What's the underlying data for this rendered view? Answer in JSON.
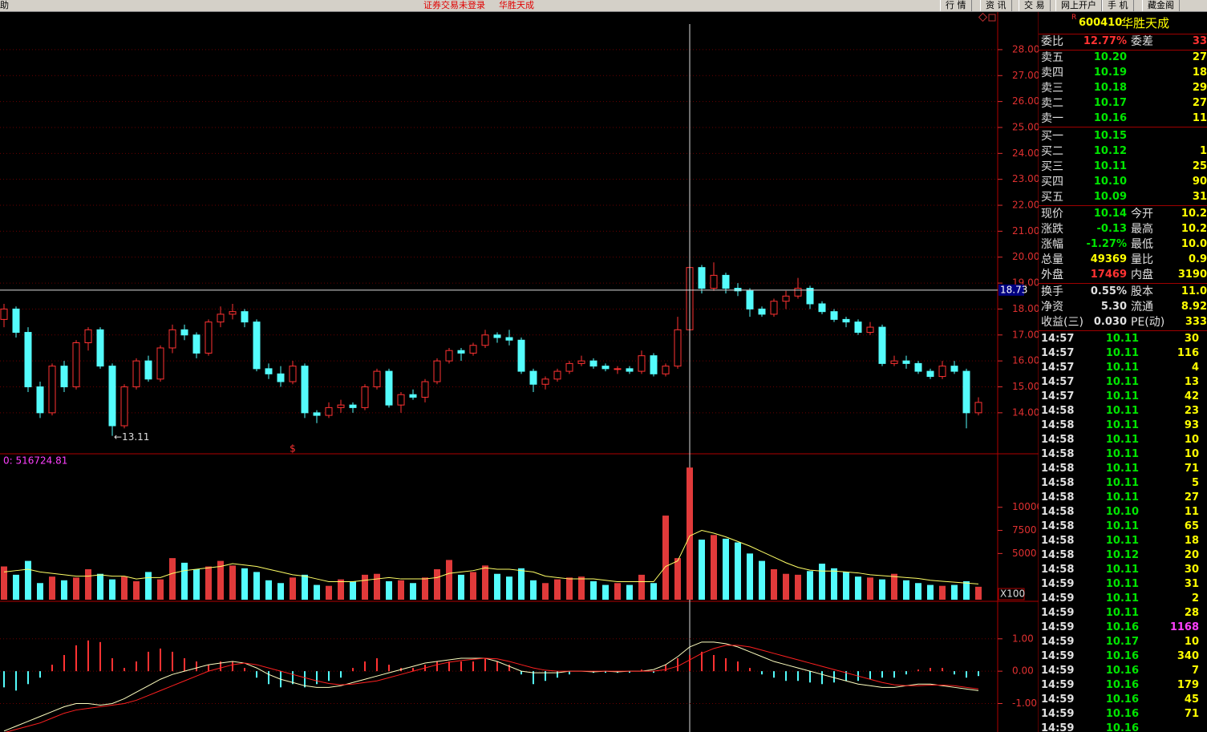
{
  "menu": {
    "left": "助",
    "status": "证券交易未登录",
    "stock": "华胜天成",
    "tabs": [
      "行 情",
      "资 讯",
      "交 易",
      "网上开户",
      "手 机",
      "藏金阁"
    ]
  },
  "chart_data": [
    {
      "type": "candlestick",
      "up_color": "#ff3232",
      "down_color": "#54fcfc",
      "grid": true,
      "open": [
        17.6,
        18.0,
        17.1,
        15.0,
        14.0,
        15.8,
        15.0,
        16.7,
        17.2,
        15.8,
        13.5,
        15.0,
        16.0,
        15.3,
        16.5,
        17.2,
        17.0,
        16.3,
        17.5,
        17.8,
        17.9,
        17.5,
        15.7,
        15.5,
        15.2,
        15.8,
        14.0,
        13.9,
        14.2,
        14.3,
        14.2,
        15.0,
        15.6,
        14.3,
        14.7,
        14.6,
        15.2,
        16.0,
        16.4,
        16.3,
        16.6,
        17.0,
        16.9,
        16.8,
        15.6,
        15.1,
        15.3,
        15.6,
        15.9,
        16.0,
        15.8,
        15.7,
        15.7,
        15.6,
        16.2,
        15.5,
        15.8,
        17.2,
        19.6,
        18.8,
        19.3,
        18.8,
        18.7,
        18.0,
        17.8,
        18.3,
        18.5,
        18.8,
        18.2,
        17.9,
        17.6,
        17.5,
        17.1,
        17.3,
        15.9,
        16.0,
        15.9,
        15.6,
        15.4,
        15.8,
        15.6,
        14.0
      ],
      "high": [
        18.2,
        18.1,
        17.3,
        15.2,
        15.9,
        16.0,
        16.8,
        17.3,
        17.3,
        15.9,
        15.1,
        16.1,
        16.2,
        16.6,
        17.4,
        17.4,
        17.1,
        17.6,
        18.1,
        18.2,
        18.0,
        17.6,
        15.9,
        15.8,
        16.0,
        15.9,
        14.1,
        14.4,
        14.5,
        14.4,
        15.1,
        15.7,
        15.7,
        14.8,
        14.9,
        15.3,
        16.1,
        16.5,
        16.5,
        16.7,
        17.2,
        17.1,
        17.2,
        16.9,
        15.7,
        15.4,
        15.7,
        16.0,
        16.2,
        16.1,
        15.9,
        15.8,
        15.8,
        16.4,
        16.3,
        15.9,
        17.7,
        20.0,
        19.7,
        19.8,
        19.4,
        19.0,
        18.8,
        18.1,
        18.4,
        18.7,
        19.2,
        18.9,
        18.3,
        18.0,
        17.7,
        17.6,
        17.5,
        17.4,
        16.2,
        16.2,
        16.0,
        15.7,
        16.0,
        16.0,
        15.7,
        14.6
      ],
      "low": [
        17.3,
        16.9,
        14.8,
        13.8,
        13.9,
        14.8,
        14.9,
        16.4,
        15.7,
        13.11,
        13.4,
        14.9,
        15.2,
        15.2,
        16.3,
        16.8,
        16.1,
        16.2,
        17.3,
        17.6,
        17.3,
        15.6,
        15.3,
        15.0,
        15.1,
        13.8,
        13.6,
        13.8,
        14.0,
        14.0,
        14.1,
        14.9,
        14.2,
        14.0,
        14.5,
        14.4,
        15.1,
        15.9,
        16.0,
        16.2,
        16.5,
        16.7,
        16.6,
        15.5,
        14.8,
        14.9,
        15.2,
        15.5,
        15.8,
        15.7,
        15.6,
        15.5,
        15.5,
        15.5,
        15.4,
        15.4,
        15.7,
        16.8,
        18.6,
        18.7,
        18.6,
        18.5,
        17.7,
        17.7,
        17.7,
        18.0,
        18.4,
        18.0,
        17.8,
        17.5,
        17.3,
        17.0,
        17.0,
        15.8,
        15.8,
        15.7,
        15.5,
        15.3,
        15.3,
        15.5,
        13.4,
        13.9
      ],
      "close": [
        18.0,
        17.1,
        15.0,
        14.0,
        15.8,
        15.0,
        16.7,
        17.2,
        15.8,
        13.5,
        15.0,
        16.0,
        15.3,
        16.5,
        17.2,
        17.0,
        16.3,
        17.5,
        17.8,
        17.9,
        17.5,
        15.7,
        15.5,
        15.2,
        15.8,
        14.0,
        13.9,
        14.2,
        14.3,
        14.2,
        15.0,
        15.6,
        14.3,
        14.7,
        14.6,
        15.2,
        16.0,
        16.4,
        16.3,
        16.6,
        17.0,
        16.9,
        16.8,
        15.6,
        15.1,
        15.3,
        15.6,
        15.9,
        16.0,
        15.8,
        15.7,
        15.7,
        15.6,
        16.2,
        15.5,
        15.8,
        17.2,
        19.6,
        18.8,
        19.3,
        18.8,
        18.7,
        18.0,
        17.8,
        18.3,
        18.5,
        18.8,
        18.2,
        17.9,
        17.6,
        17.5,
        17.1,
        17.3,
        15.9,
        16.0,
        15.9,
        15.6,
        15.4,
        15.8,
        15.6,
        14.0,
        14.4
      ],
      "ylim": [
        12.45,
        29.45
      ],
      "yticks": [
        {
          "value": 14,
          "label": "14.00"
        },
        {
          "value": 15,
          "label": "15.00"
        },
        {
          "value": 16,
          "label": "16.00"
        },
        {
          "value": 17,
          "label": "17.00"
        },
        {
          "value": 18,
          "label": "18.00"
        },
        {
          "value": 19,
          "label": "19.00"
        },
        {
          "value": 20,
          "label": "20.00"
        },
        {
          "value": 21,
          "label": "21.00"
        },
        {
          "value": 22,
          "label": "22.00"
        },
        {
          "value": 23,
          "label": "23.00"
        },
        {
          "value": 24,
          "label": "24.00"
        },
        {
          "value": 25,
          "label": "25.00"
        },
        {
          "value": 26,
          "label": "26.00"
        },
        {
          "value": 27,
          "label": "27.00"
        },
        {
          "value": 28,
          "label": "28.00"
        }
      ],
      "crosshair": {
        "value": 18.73,
        "index": 57
      },
      "annotations": [
        {
          "value": 13.11,
          "label": "←13.11",
          "index": 9
        },
        {
          "label": "$",
          "index": 24
        }
      ]
    },
    {
      "type": "volume",
      "label": "0: 516724.81",
      "unit_label": "X100",
      "grid": false,
      "values": [
        3600,
        2700,
        4200,
        1800,
        2500,
        2100,
        2400,
        3300,
        2800,
        2200,
        2500,
        2000,
        3000,
        2200,
        4500,
        4000,
        3300,
        3600,
        4200,
        3700,
        3400,
        3000,
        2100,
        1800,
        2400,
        2700,
        1600,
        1500,
        2200,
        2000,
        2700,
        2800,
        2000,
        2100,
        1800,
        2400,
        3300,
        4300,
        2700,
        3000,
        3700,
        2800,
        2500,
        3400,
        2100,
        1800,
        2200,
        2400,
        2500,
        2000,
        1600,
        1800,
        1600,
        2700,
        1800,
        9100,
        4500,
        14300,
        6500,
        7000,
        6600,
        6200,
        5000,
        4200,
        3300,
        2800,
        2700,
        3100,
        3900,
        3400,
        3000,
        2500,
        2400,
        2200,
        2800,
        2100,
        1800,
        1600,
        1500,
        1600,
        2000,
        1400
      ],
      "lines": [
        {
          "color": "#ffff66",
          "values": [
            3000,
            3150,
            3300,
            3000,
            2850,
            2700,
            2550,
            2550,
            2700,
            2550,
            2550,
            2250,
            2400,
            2400,
            2850,
            3150,
            3300,
            3450,
            3600,
            3900,
            3750,
            3600,
            3300,
            3000,
            2700,
            2550,
            2250,
            1950,
            1950,
            1950,
            2100,
            2250,
            2400,
            2250,
            2250,
            2250,
            2400,
            2850,
            3000,
            3150,
            3450,
            3300,
            3300,
            3150,
            3000,
            2550,
            2400,
            2250,
            2250,
            2250,
            2100,
            1950,
            1950,
            1950,
            1950,
            3600,
            4200,
            6900,
            7500,
            7200,
            6800,
            6300,
            5800,
            5200,
            4600,
            4000,
            3500,
            3200,
            3100,
            3100,
            3000,
            2900,
            2700,
            2600,
            2500,
            2400,
            2300,
            2100,
            2000,
            1900,
            1800,
            1700
          ]
        }
      ],
      "ylim": [
        0,
        15700
      ],
      "yticks": [
        5000,
        7500,
        10000
      ]
    },
    {
      "type": "macd",
      "up_color": "#ff3232",
      "down_color": "#54fcfc",
      "grid": true,
      "values": [
        -0.5,
        -0.6,
        -0.4,
        -0.2,
        0.2,
        0.5,
        0.8,
        0.95,
        0.9,
        0.4,
        0.1,
        0.3,
        0.6,
        0.7,
        0.6,
        0.4,
        0.3,
        0.2,
        0.3,
        0.3,
        0.1,
        -0.2,
        -0.4,
        -0.5,
        -0.4,
        -0.5,
        -0.4,
        -0.3,
        -0.2,
        0.1,
        0.3,
        0.4,
        0.2,
        0.1,
        0.1,
        0.2,
        0.3,
        0.3,
        0.3,
        0.3,
        0.4,
        0.3,
        0.2,
        -0.1,
        -0.4,
        -0.3,
        -0.2,
        -0.1,
        0.0,
        -0.05,
        -0.05,
        -0.05,
        -0.05,
        0.05,
        -0.05,
        0.2,
        0.4,
        0.5,
        0.6,
        0.5,
        0.4,
        0.3,
        0.1,
        -0.1,
        -0.2,
        -0.3,
        -0.3,
        -0.35,
        -0.4,
        -0.35,
        -0.3,
        -0.3,
        -0.25,
        -0.2,
        -0.2,
        -0.1,
        0.05,
        0.1,
        0.1,
        -0.1,
        -0.2,
        -0.15
      ],
      "lines": [
        {
          "color": "#ffffc0",
          "values": [
            -1.85,
            -1.7,
            -1.55,
            -1.4,
            -1.25,
            -1.1,
            -1.0,
            -1.0,
            -1.05,
            -1.0,
            -0.85,
            -0.65,
            -0.45,
            -0.25,
            -0.1,
            0.0,
            0.1,
            0.2,
            0.25,
            0.3,
            0.25,
            0.1,
            -0.1,
            -0.25,
            -0.35,
            -0.45,
            -0.5,
            -0.5,
            -0.45,
            -0.35,
            -0.25,
            -0.15,
            -0.05,
            0.05,
            0.15,
            0.25,
            0.3,
            0.35,
            0.4,
            0.4,
            0.4,
            0.3,
            0.15,
            0.0,
            -0.05,
            -0.05,
            -0.05,
            0.0,
            0.0,
            -0.02,
            0.0,
            -0.02,
            0.0,
            0.0,
            0.05,
            0.2,
            0.45,
            0.75,
            0.9,
            0.9,
            0.85,
            0.75,
            0.6,
            0.45,
            0.3,
            0.2,
            0.1,
            0.0,
            -0.1,
            -0.2,
            -0.3,
            -0.4,
            -0.45,
            -0.5,
            -0.5,
            -0.45,
            -0.4,
            -0.4,
            -0.45,
            -0.5,
            -0.55,
            -0.6
          ]
        },
        {
          "color": "#ff2020",
          "values": [
            -1.9,
            -1.8,
            -1.7,
            -1.6,
            -1.45,
            -1.3,
            -1.2,
            -1.15,
            -1.1,
            -1.05,
            -1.0,
            -0.9,
            -0.75,
            -0.6,
            -0.45,
            -0.3,
            -0.15,
            0.0,
            0.1,
            0.2,
            0.25,
            0.2,
            0.1,
            0.0,
            -0.1,
            -0.2,
            -0.3,
            -0.38,
            -0.42,
            -0.4,
            -0.35,
            -0.3,
            -0.2,
            -0.1,
            0.0,
            0.1,
            0.2,
            0.28,
            0.33,
            0.37,
            0.4,
            0.38,
            0.3,
            0.2,
            0.1,
            0.03,
            0.0,
            0.0,
            0.0,
            0.0,
            0.0,
            0.0,
            0.0,
            0.0,
            0.0,
            0.05,
            0.15,
            0.35,
            0.55,
            0.7,
            0.8,
            0.8,
            0.75,
            0.65,
            0.55,
            0.45,
            0.35,
            0.25,
            0.15,
            0.05,
            -0.05,
            -0.15,
            -0.25,
            -0.35,
            -0.42,
            -0.45,
            -0.45,
            -0.43,
            -0.43,
            -0.45,
            -0.5,
            -0.55
          ]
        }
      ],
      "ylim": [
        -1.88,
        2.11
      ],
      "yticks": [
        {
          "value": -1,
          "label": "-1.00"
        },
        {
          "value": 0,
          "label": "0.00"
        },
        {
          "value": 1,
          "label": "1.00"
        }
      ]
    }
  ],
  "quote": {
    "flag": "R",
    "code": "600410",
    "name": "华胜天成",
    "ratio": [
      "委比",
      "12.77%",
      "委差",
      "33"
    ],
    "asks": [
      [
        "卖五",
        "10.20",
        "27"
      ],
      [
        "卖四",
        "10.19",
        "18"
      ],
      [
        "卖三",
        "10.18",
        "29"
      ],
      [
        "卖二",
        "10.17",
        "27"
      ],
      [
        "卖一",
        "10.16",
        "11"
      ]
    ],
    "bids": [
      [
        "买一",
        "10.15"
      ],
      [
        "买二",
        "10.12",
        "1"
      ],
      [
        "买三",
        "10.11",
        "25"
      ],
      [
        "买四",
        "10.10",
        "90"
      ],
      [
        "买五",
        "10.09",
        "31"
      ]
    ],
    "stats": [
      [
        "现价",
        "10.14",
        "今开",
        "10.2"
      ],
      [
        "涨跌",
        "-0.13",
        "最高",
        "10.2"
      ],
      [
        "涨幅",
        "-1.27%",
        "最低",
        "10.0"
      ],
      [
        "总量",
        "49369",
        "量比",
        "0.9"
      ],
      [
        "外盘",
        "17469",
        "内盘",
        "3190"
      ]
    ],
    "fund": [
      [
        "换手",
        "0.55%",
        "股本",
        "11.0"
      ],
      [
        "净资",
        "5.30",
        "流通",
        "8.92"
      ],
      [
        "收益(三)",
        "0.030",
        "PE(动)",
        "333"
      ]
    ]
  },
  "trades": {
    "rows": [
      [
        "14:57",
        "10.11",
        "30"
      ],
      [
        "14:57",
        "10.11",
        "116"
      ],
      [
        "14:57",
        "10.11",
        "4"
      ],
      [
        "14:57",
        "10.11",
        "13"
      ],
      [
        "14:57",
        "10.11",
        "42"
      ],
      [
        "14:58",
        "10.11",
        "23"
      ],
      [
        "14:58",
        "10.11",
        "93"
      ],
      [
        "14:58",
        "10.11",
        "10"
      ],
      [
        "14:58",
        "10.11",
        "10"
      ],
      [
        "14:58",
        "10.11",
        "71"
      ],
      [
        "14:58",
        "10.11",
        "5"
      ],
      [
        "14:58",
        "10.11",
        "27"
      ],
      [
        "14:58",
        "10.10",
        "11"
      ],
      [
        "14:58",
        "10.11",
        "65"
      ],
      [
        "14:58",
        "10.11",
        "18"
      ],
      [
        "14:58",
        "10.12",
        "20"
      ],
      [
        "14:58",
        "10.11",
        "30"
      ],
      [
        "14:59",
        "10.11",
        "31"
      ],
      [
        "14:59",
        "10.11",
        "2"
      ],
      [
        "14:59",
        "10.11",
        "28"
      ],
      [
        "14:59",
        "10.16",
        "1168"
      ],
      [
        "14:59",
        "10.17",
        "10"
      ],
      [
        "14:59",
        "10.16",
        "340"
      ],
      [
        "14:59",
        "10.16",
        "7"
      ],
      [
        "14:59",
        "10.16",
        "179"
      ],
      [
        "14:59",
        "10.16",
        "45"
      ],
      [
        "14:59",
        "10.16",
        "71"
      ],
      [
        "14:59",
        "10.16"
      ]
    ]
  }
}
